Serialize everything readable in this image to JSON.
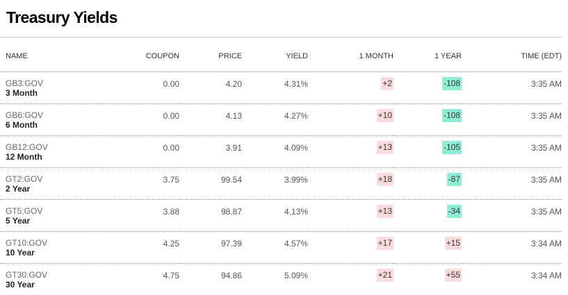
{
  "title": "Treasury Yields",
  "headers": {
    "name": "NAME",
    "coupon": "COUPON",
    "price": "PRICE",
    "yield": "YIELD",
    "month": "1 MONTH",
    "year": "1 YEAR",
    "time": "TIME (EDT)"
  },
  "colors": {
    "positive_change_bg": "#fbdcdc",
    "negative_change_bg": "#8eeed5"
  },
  "rows": [
    {
      "ticker": "GB3:GOV",
      "name": "3 Month",
      "coupon": "0.00",
      "price": "4.20",
      "yield": "4.31%",
      "month": "+2",
      "year": "-108",
      "time": "3:35 AM"
    },
    {
      "ticker": "GB6:GOV",
      "name": "6 Month",
      "coupon": "0.00",
      "price": "4.13",
      "yield": "4.27%",
      "month": "+10",
      "year": "-108",
      "time": "3:35 AM"
    },
    {
      "ticker": "GB12:GOV",
      "name": "12 Month",
      "coupon": "0.00",
      "price": "3.91",
      "yield": "4.09%",
      "month": "+13",
      "year": "-105",
      "time": "3:35 AM"
    },
    {
      "ticker": "GT2:GOV",
      "name": "2 Year",
      "coupon": "3.75",
      "price": "99.54",
      "yield": "3.99%",
      "month": "+18",
      "year": "-87",
      "time": "3:35 AM"
    },
    {
      "ticker": "GT5:GOV",
      "name": "5 Year",
      "coupon": "3.88",
      "price": "98.87",
      "yield": "4.13%",
      "month": "+13",
      "year": "-34",
      "time": "3:35 AM"
    },
    {
      "ticker": "GT10:GOV",
      "name": "10 Year",
      "coupon": "4.25",
      "price": "97.39",
      "yield": "4.57%",
      "month": "+17",
      "year": "+15",
      "time": "3:34 AM"
    },
    {
      "ticker": "GT30:GOV",
      "name": "30 Year",
      "coupon": "4.75",
      "price": "94.86",
      "yield": "5.09%",
      "month": "+21",
      "year": "+55",
      "time": "3:34 AM"
    }
  ]
}
